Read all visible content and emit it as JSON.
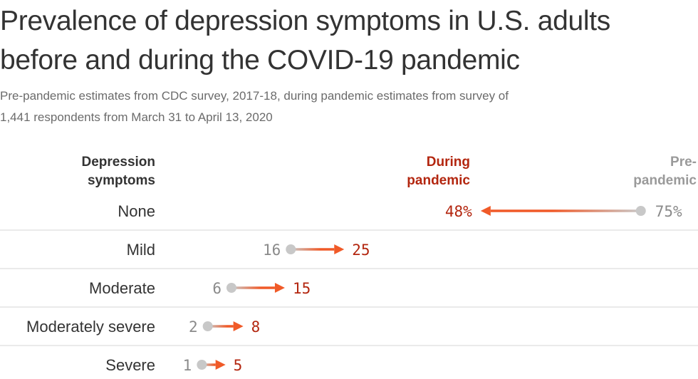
{
  "header": {
    "title": "Prevalence of depression symptoms in U.S. adults before and during the COVID-19 pandemic",
    "subtitle": "Pre-pandemic estimates from CDC survey, 2017-18, during pandemic estimates from survey of 1,441 respondents from March 31 to April 13, 2020"
  },
  "colors": {
    "pre": "#c8c8c8",
    "pre_text": "#8a8a8a",
    "during": "#f05a28",
    "during_text": "#b3260f",
    "row_divider": "#d6d6d6"
  },
  "chart_data": {
    "type": "dumbbell",
    "title": "Prevalence of depression symptoms in U.S. adults before and during the COVID-19 pandemic",
    "column_headers": {
      "category": [
        "Depression",
        "symptoms"
      ],
      "during": [
        "During",
        "pandemic"
      ],
      "pre": [
        "Pre-",
        "pandemic"
      ]
    },
    "unit": "%",
    "categories": [
      "None",
      "Mild",
      "Moderate",
      "Moderately severe",
      "Severe"
    ],
    "series": [
      {
        "name": "Pre-pandemic",
        "values": [
          75,
          16,
          6,
          2,
          1
        ]
      },
      {
        "name": "During pandemic",
        "values": [
          48,
          25,
          15,
          8,
          5
        ]
      }
    ],
    "pre_labels": [
      "75%",
      "16",
      "6",
      "2",
      "1"
    ],
    "during_labels": [
      "48%",
      "25",
      "15",
      "8",
      "5"
    ],
    "grid": false,
    "legend": "column headers top"
  }
}
